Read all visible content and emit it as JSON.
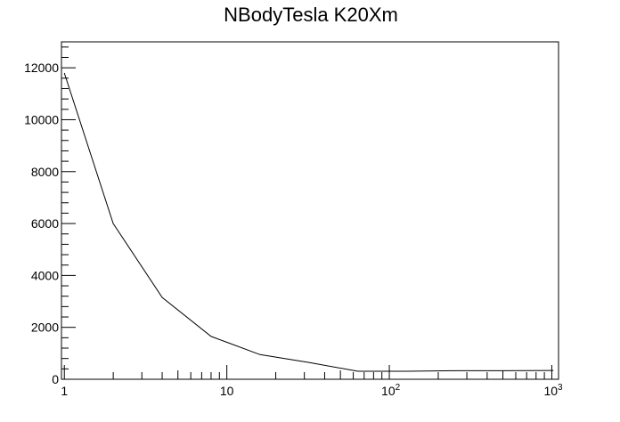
{
  "chart_data": {
    "type": "line",
    "title": "NBodyTesla K20Xm",
    "xlabel": "",
    "ylabel": "",
    "xscale": "log",
    "xlim": [
      0.96,
      1100
    ],
    "ylim": [
      0,
      13000
    ],
    "grid": false,
    "legend": "none",
    "x_ticks": [
      {
        "value": 1,
        "label": "1"
      },
      {
        "value": 10,
        "label": "10"
      },
      {
        "value": 100,
        "label": "10",
        "exp": "2"
      },
      {
        "value": 1000,
        "label": "10",
        "exp": "3"
      }
    ],
    "y_ticks": [
      0,
      2000,
      4000,
      6000,
      8000,
      10000,
      12000
    ],
    "y_tick_labels": [
      "0",
      "2000",
      "4000",
      "6000",
      "8000",
      "10000",
      "12000"
    ],
    "series": [
      {
        "color": "#000000",
        "x": [
          1,
          2,
          4,
          8,
          16,
          32,
          64,
          128,
          256,
          512,
          1024
        ],
        "y": [
          11800,
          6000,
          3150,
          1650,
          950,
          650,
          310,
          310,
          330,
          330,
          340
        ]
      }
    ]
  }
}
